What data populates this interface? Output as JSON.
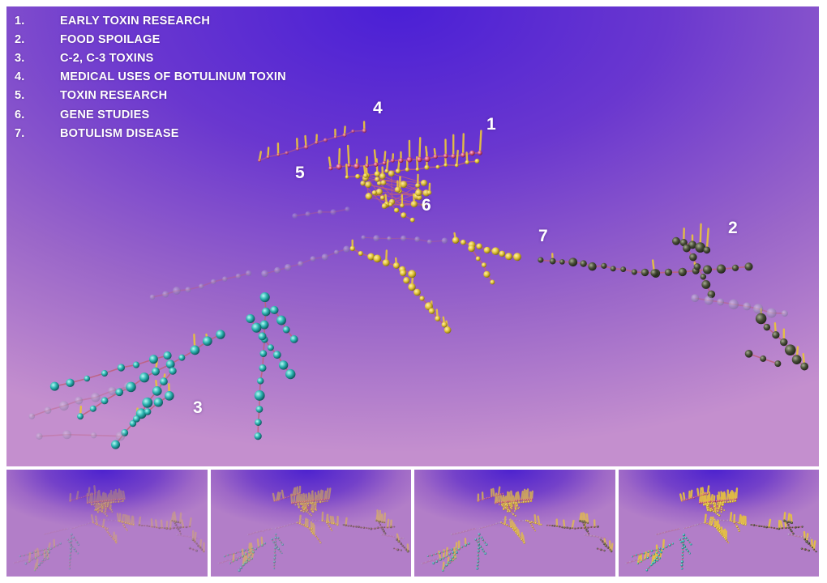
{
  "legend": {
    "items": [
      {
        "num": "1.",
        "label": "EARLY TOXIN RESEARCH"
      },
      {
        "num": "2.",
        "label": "FOOD SPOILAGE"
      },
      {
        "num": "3.",
        "label": "C-2, C-3 TOXINS"
      },
      {
        "num": "4.",
        "label": "MEDICAL USES OF BOTULINUM TOXIN"
      },
      {
        "num": "5.",
        "label": "TOXIN RESEARCH"
      },
      {
        "num": "6.",
        "label": "GENE STUDIES"
      },
      {
        "num": "7.",
        "label": "BOTULISM DISEASE"
      }
    ]
  },
  "cluster_labels": [
    "1",
    "2",
    "3",
    "4",
    "5",
    "6",
    "7"
  ],
  "colors": {
    "background_top": "#4a1fd6",
    "background_bottom": "#c48fce",
    "node_yellow": "#e3c43a",
    "node_teal": "#2bb3b0",
    "node_dark": "#3a3f2e",
    "node_pink": "#d2557a",
    "edge": "#c0607a",
    "spike": "#e7c23f"
  },
  "thumbnails": {
    "count": 4
  }
}
